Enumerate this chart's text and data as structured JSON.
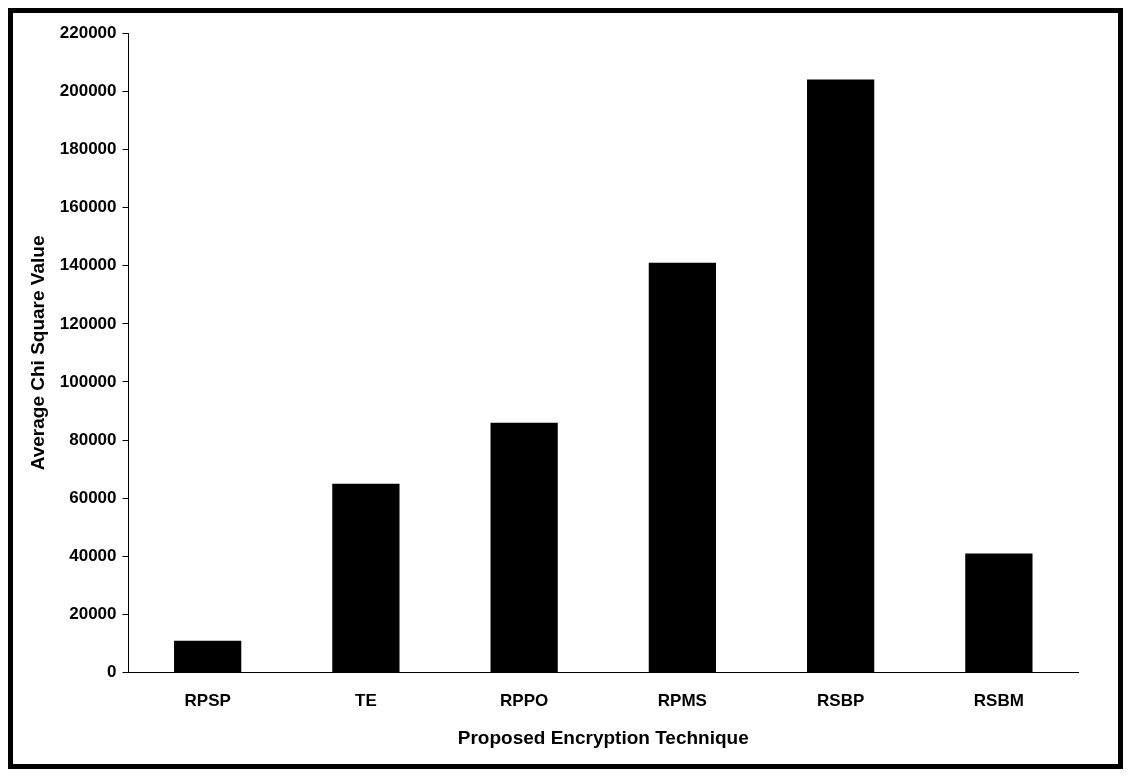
{
  "chart_data": {
    "type": "bar",
    "xlabel": "Proposed Encryption Technique",
    "ylabel": "Average Chi Square Value",
    "categories": [
      "RPSP",
      "TE",
      "RPPO",
      "RPMS",
      "RSBP",
      "RSBM"
    ],
    "values": [
      11000,
      65000,
      86000,
      141000,
      204000,
      41000
    ],
    "color": "#000000",
    "ylim": [
      0,
      220000
    ],
    "yticks": [
      0,
      20000,
      40000,
      60000,
      80000,
      100000,
      120000,
      140000,
      160000,
      180000,
      200000,
      220000
    ],
    "grid": false,
    "legend": false
  }
}
